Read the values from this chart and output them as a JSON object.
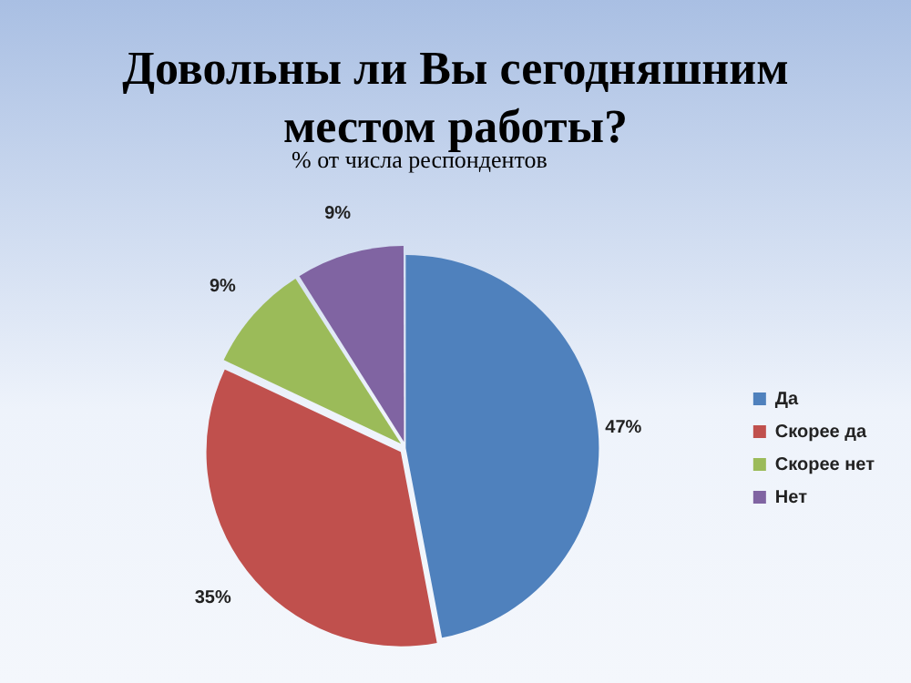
{
  "chart_data": {
    "type": "pie",
    "title": "Довольны ли Вы сегодняшним местом работы?",
    "subtitle": "% от числа респондентов",
    "categories": [
      "Да",
      "Скорее да",
      "Скорее нет",
      "Нет"
    ],
    "values": [
      47,
      35,
      9,
      9
    ],
    "colors": [
      "#4f81bd",
      "#c0504d",
      "#9bbb59",
      "#8064a2"
    ],
    "value_labels": [
      "47%",
      "35%",
      "9%",
      "9%"
    ],
    "legend": "right"
  }
}
